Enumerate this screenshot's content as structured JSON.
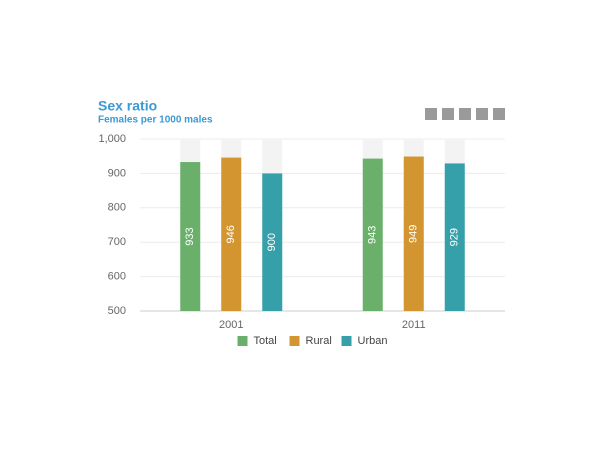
{
  "chart_data": {
    "type": "bar",
    "title": "Sex ratio",
    "subtitle": "Females per 1000 males",
    "categories": [
      "2001",
      "2011"
    ],
    "series": [
      {
        "name": "Total",
        "color": "#6ab06a",
        "values": [
          933,
          943
        ]
      },
      {
        "name": "Rural",
        "color": "#d3952f",
        "values": [
          946,
          949
        ]
      },
      {
        "name": "Urban",
        "color": "#35a0aa",
        "values": [
          900,
          929
        ]
      }
    ],
    "ylim": [
      500,
      1000
    ],
    "yticks": [
      500,
      600,
      700,
      800,
      900,
      {
        "value": 1000,
        "label": "1,000"
      }
    ],
    "grid": true,
    "legend": "bottom"
  }
}
